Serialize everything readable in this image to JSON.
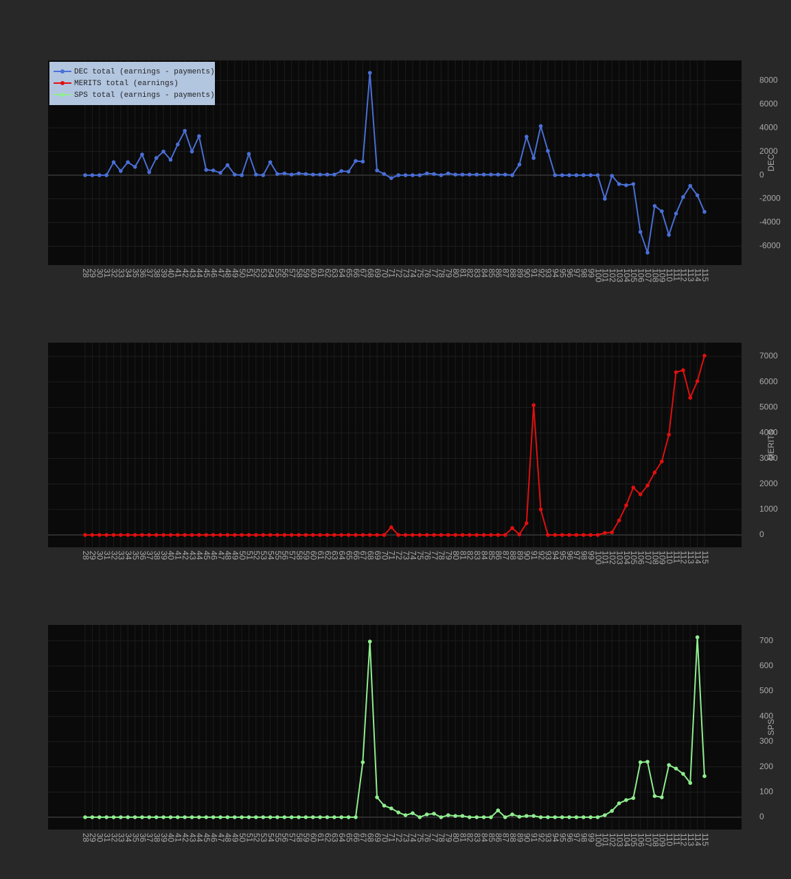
{
  "chart_data": [
    {
      "type": "line",
      "y_label": "DEC",
      "legend": "top-left",
      "categories": [
        28,
        29,
        30,
        31,
        32,
        33,
        34,
        35,
        36,
        37,
        38,
        39,
        40,
        41,
        42,
        43,
        44,
        45,
        46,
        47,
        48,
        49,
        50,
        51,
        52,
        53,
        54,
        55,
        56,
        57,
        58,
        59,
        60,
        61,
        62,
        63,
        64,
        65,
        66,
        67,
        68,
        69,
        70,
        71,
        72,
        73,
        74,
        75,
        76,
        77,
        78,
        79,
        80,
        81,
        82,
        83,
        84,
        85,
        86,
        87,
        88,
        89,
        90,
        91,
        92,
        93,
        94,
        95,
        96,
        97,
        98,
        99,
        100,
        101,
        102,
        103,
        104,
        105,
        106,
        107,
        108,
        109,
        110,
        111,
        112,
        113,
        114,
        115
      ],
      "series": [
        {
          "name": "DEC total (earnings - payments)",
          "color": "#4a6fd6",
          "values": [
            0,
            0,
            0,
            0,
            1100,
            350,
            1100,
            700,
            1750,
            250,
            1450,
            2000,
            1300,
            2600,
            3750,
            2000,
            3300,
            450,
            400,
            200,
            850,
            50,
            0,
            1800,
            50,
            0,
            1100,
            100,
            150,
            50,
            150,
            100,
            50,
            50,
            50,
            50,
            350,
            300,
            1200,
            1150,
            8650,
            400,
            100,
            -250,
            0,
            0,
            0,
            0,
            150,
            100,
            0,
            150,
            50,
            50,
            50,
            50,
            50,
            50,
            50,
            50,
            0,
            900,
            3250,
            1450,
            4150,
            2050,
            0,
            0,
            0,
            0,
            0,
            0,
            0,
            -2000,
            -50,
            -750,
            -850,
            -750,
            -4800,
            -6550,
            -2600,
            -3050,
            -5050,
            -3250,
            -1850,
            -900,
            -1700,
            -3100
          ]
        }
      ],
      "ylim": [
        -7600,
        9700
      ],
      "yticks": [
        -6000,
        -4000,
        -2000,
        0,
        2000,
        4000,
        6000,
        8000
      ],
      "grid": true
    },
    {
      "type": "line",
      "y_label": "MERITS",
      "categories": [
        28,
        29,
        30,
        31,
        32,
        33,
        34,
        35,
        36,
        37,
        38,
        39,
        40,
        41,
        42,
        43,
        44,
        45,
        46,
        47,
        48,
        49,
        50,
        51,
        52,
        53,
        54,
        55,
        56,
        57,
        58,
        59,
        60,
        61,
        62,
        63,
        64,
        65,
        66,
        67,
        68,
        69,
        70,
        71,
        72,
        73,
        74,
        75,
        76,
        77,
        78,
        79,
        80,
        81,
        82,
        83,
        84,
        85,
        86,
        87,
        88,
        89,
        90,
        91,
        92,
        93,
        94,
        95,
        96,
        97,
        98,
        99,
        100,
        101,
        102,
        103,
        104,
        105,
        106,
        107,
        108,
        109,
        110,
        111,
        112,
        113,
        114,
        115
      ],
      "series": [
        {
          "name": "MERITS  total (earnings)",
          "color": "#e01010",
          "values": [
            0,
            0,
            0,
            0,
            0,
            0,
            0,
            0,
            0,
            0,
            0,
            0,
            0,
            0,
            0,
            0,
            0,
            0,
            0,
            0,
            0,
            0,
            0,
            0,
            0,
            0,
            0,
            0,
            0,
            0,
            0,
            0,
            0,
            0,
            0,
            0,
            0,
            0,
            0,
            0,
            0,
            0,
            0,
            300,
            0,
            0,
            0,
            0,
            0,
            0,
            0,
            0,
            0,
            0,
            0,
            0,
            0,
            0,
            0,
            0,
            270,
            20,
            460,
            5090,
            1000,
            0,
            0,
            0,
            0,
            0,
            0,
            0,
            0,
            80,
            100,
            570,
            1160,
            1860,
            1590,
            1940,
            2450,
            2880,
            3930,
            6380,
            6460,
            5380,
            6030,
            7030
          ]
        }
      ],
      "ylim": [
        -485,
        7540
      ],
      "yticks": [
        0,
        1000,
        2000,
        3000,
        4000,
        5000,
        6000,
        7000
      ],
      "grid": true
    },
    {
      "type": "line",
      "y_label": "SPS",
      "categories": [
        28,
        29,
        30,
        31,
        32,
        33,
        34,
        35,
        36,
        37,
        38,
        39,
        40,
        41,
        42,
        43,
        44,
        45,
        46,
        47,
        48,
        49,
        50,
        51,
        52,
        53,
        54,
        55,
        56,
        57,
        58,
        59,
        60,
        61,
        62,
        63,
        64,
        65,
        66,
        67,
        68,
        69,
        70,
        71,
        72,
        73,
        74,
        75,
        76,
        77,
        78,
        79,
        80,
        81,
        82,
        83,
        84,
        85,
        86,
        87,
        88,
        89,
        90,
        91,
        92,
        93,
        94,
        95,
        96,
        97,
        98,
        99,
        100,
        101,
        102,
        103,
        104,
        105,
        106,
        107,
        108,
        109,
        110,
        111,
        112,
        113,
        114,
        115
      ],
      "series": [
        {
          "name": "SPS total (earnings - payments)",
          "color": "#90ee90",
          "values": [
            0,
            0,
            0,
            0,
            0,
            0,
            0,
            0,
            0,
            0,
            0,
            0,
            0,
            0,
            0,
            0,
            0,
            0,
            0,
            0,
            0,
            0,
            0,
            0,
            0,
            0,
            0,
            0,
            0,
            0,
            0,
            0,
            0,
            0,
            0,
            0,
            0,
            0,
            0,
            218,
            697,
            79,
            46,
            35,
            19,
            8,
            16,
            0,
            11,
            14,
            0,
            8,
            5,
            5,
            0,
            0,
            0,
            0,
            27,
            0,
            11,
            2,
            5,
            5,
            0,
            0,
            0,
            0,
            0,
            0,
            0,
            0,
            0,
            8,
            25,
            55,
            68,
            76,
            218,
            220,
            84,
            79,
            207,
            193,
            172,
            136,
            714,
            163
          ]
        }
      ],
      "ylim": [
        -49,
        763
      ],
      "yticks": [
        0,
        100,
        200,
        300,
        400,
        500,
        600,
        700
      ],
      "grid": true
    }
  ]
}
